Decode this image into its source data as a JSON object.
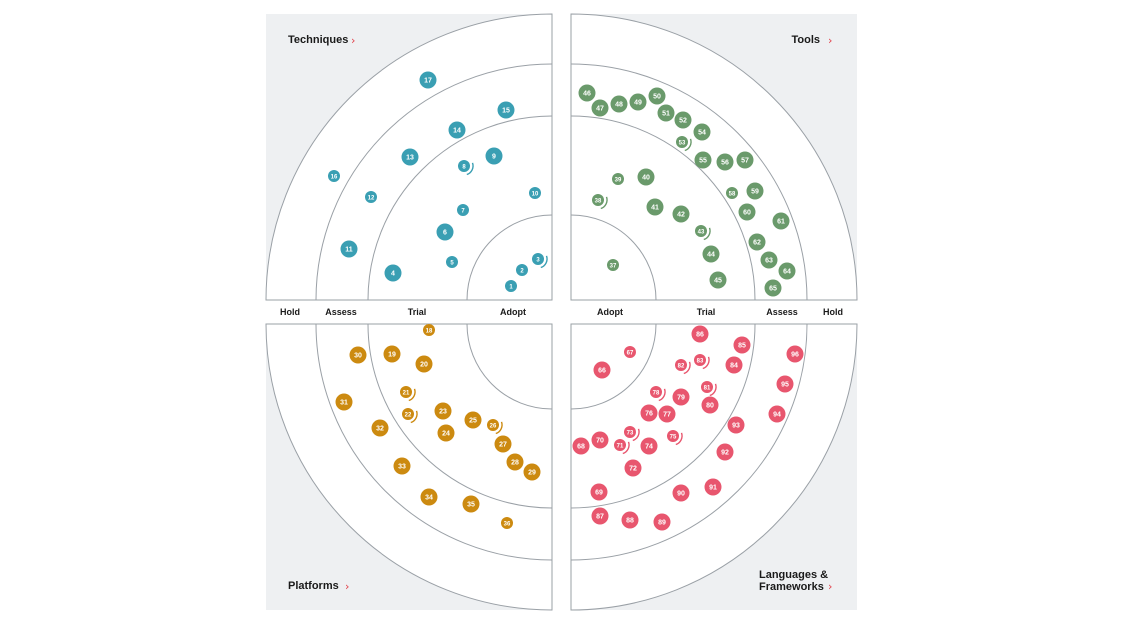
{
  "quadrants": {
    "techniques": {
      "label": "Techniques",
      "arrow": "›"
    },
    "tools": {
      "label": "Tools",
      "arrow": "›"
    },
    "platforms": {
      "label": "Platforms",
      "arrow": "›"
    },
    "languages": {
      "label_line1": "Languages &",
      "label_line2": "Frameworks",
      "arrow": "›"
    }
  },
  "rings": {
    "left": [
      "Hold",
      "Assess",
      "Trial",
      "Adopt"
    ],
    "right": [
      "Adopt",
      "Trial",
      "Assess",
      "Hold"
    ]
  },
  "colors": {
    "techniques": "#3a9fb3",
    "tools": "#6a9a6b",
    "platforms": "#cc8a10",
    "languages": "#e8566e",
    "panel_bg": "#eef0f2",
    "ring_stroke": "#9aa0a6",
    "arrow": "#e2414a"
  },
  "blips": [
    {
      "n": "1",
      "q": "techniques"
    },
    {
      "n": "2",
      "q": "techniques"
    },
    {
      "n": "3",
      "q": "techniques",
      "moved": true
    },
    {
      "n": "4",
      "q": "techniques"
    },
    {
      "n": "5",
      "q": "techniques"
    },
    {
      "n": "6",
      "q": "techniques"
    },
    {
      "n": "7",
      "q": "techniques"
    },
    {
      "n": "8",
      "q": "techniques",
      "moved": true
    },
    {
      "n": "9",
      "q": "techniques"
    },
    {
      "n": "10",
      "q": "techniques"
    },
    {
      "n": "11",
      "q": "techniques"
    },
    {
      "n": "12",
      "q": "techniques"
    },
    {
      "n": "13",
      "q": "techniques"
    },
    {
      "n": "14",
      "q": "techniques"
    },
    {
      "n": "15",
      "q": "techniques"
    },
    {
      "n": "16",
      "q": "techniques"
    },
    {
      "n": "17",
      "q": "techniques"
    },
    {
      "n": "18",
      "q": "platforms"
    },
    {
      "n": "19",
      "q": "platforms"
    },
    {
      "n": "20",
      "q": "platforms"
    },
    {
      "n": "21",
      "q": "platforms",
      "moved": true
    },
    {
      "n": "22",
      "q": "platforms",
      "moved": true
    },
    {
      "n": "23",
      "q": "platforms"
    },
    {
      "n": "24",
      "q": "platforms"
    },
    {
      "n": "25",
      "q": "platforms"
    },
    {
      "n": "26",
      "q": "platforms",
      "moved": true
    },
    {
      "n": "27",
      "q": "platforms"
    },
    {
      "n": "28",
      "q": "platforms"
    },
    {
      "n": "29",
      "q": "platforms"
    },
    {
      "n": "30",
      "q": "platforms"
    },
    {
      "n": "31",
      "q": "platforms"
    },
    {
      "n": "32",
      "q": "platforms"
    },
    {
      "n": "33",
      "q": "platforms"
    },
    {
      "n": "34",
      "q": "platforms"
    },
    {
      "n": "35",
      "q": "platforms"
    },
    {
      "n": "36",
      "q": "platforms"
    },
    {
      "n": "37",
      "q": "tools"
    },
    {
      "n": "38",
      "q": "tools",
      "moved": true
    },
    {
      "n": "39",
      "q": "tools"
    },
    {
      "n": "40",
      "q": "tools"
    },
    {
      "n": "41",
      "q": "tools"
    },
    {
      "n": "42",
      "q": "tools"
    },
    {
      "n": "43",
      "q": "tools",
      "moved": true
    },
    {
      "n": "44",
      "q": "tools"
    },
    {
      "n": "45",
      "q": "tools"
    },
    {
      "n": "46",
      "q": "tools"
    },
    {
      "n": "47",
      "q": "tools"
    },
    {
      "n": "48",
      "q": "tools"
    },
    {
      "n": "49",
      "q": "tools"
    },
    {
      "n": "50",
      "q": "tools"
    },
    {
      "n": "51",
      "q": "tools"
    },
    {
      "n": "52",
      "q": "tools"
    },
    {
      "n": "53",
      "q": "tools",
      "moved": true
    },
    {
      "n": "54",
      "q": "tools"
    },
    {
      "n": "55",
      "q": "tools"
    },
    {
      "n": "56",
      "q": "tools"
    },
    {
      "n": "57",
      "q": "tools"
    },
    {
      "n": "58",
      "q": "tools"
    },
    {
      "n": "59",
      "q": "tools"
    },
    {
      "n": "60",
      "q": "tools"
    },
    {
      "n": "61",
      "q": "tools"
    },
    {
      "n": "62",
      "q": "tools"
    },
    {
      "n": "63",
      "q": "tools"
    },
    {
      "n": "64",
      "q": "tools"
    },
    {
      "n": "65",
      "q": "tools"
    },
    {
      "n": "66",
      "q": "languages"
    },
    {
      "n": "67",
      "q": "languages"
    },
    {
      "n": "68",
      "q": "languages"
    },
    {
      "n": "69",
      "q": "languages"
    },
    {
      "n": "70",
      "q": "languages"
    },
    {
      "n": "71",
      "q": "languages",
      "moved": true
    },
    {
      "n": "72",
      "q": "languages"
    },
    {
      "n": "73",
      "q": "languages",
      "moved": true
    },
    {
      "n": "74",
      "q": "languages"
    },
    {
      "n": "75",
      "q": "languages",
      "moved": true
    },
    {
      "n": "76",
      "q": "languages"
    },
    {
      "n": "77",
      "q": "languages"
    },
    {
      "n": "78",
      "q": "languages",
      "moved": true
    },
    {
      "n": "79",
      "q": "languages"
    },
    {
      "n": "80",
      "q": "languages"
    },
    {
      "n": "81",
      "q": "languages",
      "moved": true
    },
    {
      "n": "82",
      "q": "languages",
      "moved": true
    },
    {
      "n": "83",
      "q": "languages",
      "moved": true
    },
    {
      "n": "84",
      "q": "languages"
    },
    {
      "n": "85",
      "q": "languages"
    },
    {
      "n": "86",
      "q": "languages"
    },
    {
      "n": "87",
      "q": "languages"
    },
    {
      "n": "88",
      "q": "languages"
    },
    {
      "n": "89",
      "q": "languages"
    },
    {
      "n": "90",
      "q": "languages"
    },
    {
      "n": "91",
      "q": "languages"
    },
    {
      "n": "92",
      "q": "languages"
    },
    {
      "n": "93",
      "q": "languages"
    },
    {
      "n": "94",
      "q": "languages"
    },
    {
      "n": "95",
      "q": "languages"
    },
    {
      "n": "96",
      "q": "languages"
    }
  ]
}
